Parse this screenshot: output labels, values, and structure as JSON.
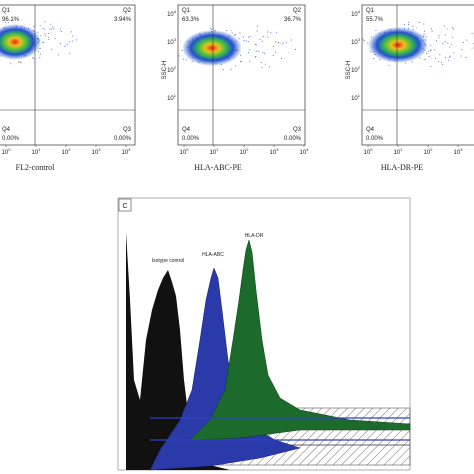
{
  "panels": [
    {
      "x_label": "FL2-control",
      "quadrants": {
        "q1": {
          "name": "Q1",
          "value": "96.1%"
        },
        "q2": {
          "name": "Q2",
          "value": "3.94%"
        },
        "q4": {
          "name": "Q4",
          "value": "0.00%"
        },
        "q3": {
          "name": "Q3",
          "value": "0.00%"
        }
      }
    },
    {
      "x_label": "HLA-ABC-PE",
      "y_label": "SSC-H",
      "quadrants": {
        "q1": {
          "name": "Q1",
          "value": "63.3%"
        },
        "q2": {
          "name": "Q2",
          "value": "36.7%"
        },
        "q4": {
          "name": "Q4",
          "value": "0.00%"
        },
        "q3": {
          "name": "Q3",
          "value": "0.00%"
        }
      }
    },
    {
      "x_label": "HLA-DR-PE",
      "y_label": "SSC-H",
      "quadrants": {
        "q1": {
          "name": "Q1",
          "value": "55.7%"
        },
        "q4": {
          "name": "Q4",
          "value": "0.00%"
        }
      }
    }
  ],
  "tick_base": "10",
  "x_tick_exponents": [
    "0",
    "1",
    "2",
    "3",
    "4"
  ],
  "y_tick_exponents": [
    "1",
    "2",
    "3",
    "4"
  ],
  "histogram": {
    "panel_label": "C",
    "labels": [
      "Isotype control",
      "HLA-ABC",
      "HLA-DR"
    ]
  }
}
